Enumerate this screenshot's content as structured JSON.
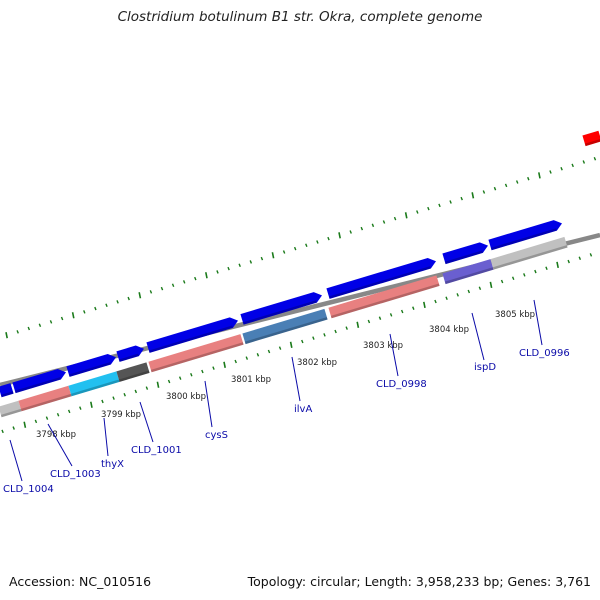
{
  "title": "Clostridium botulinum B1 str. Okra, complete genome",
  "footer": {
    "accession": "Accession: NC_010516",
    "topology": "Topology: circular; Length: 3,958,233 bp; Genes: 3,761"
  },
  "colors": {
    "forward_cds": "#0000e6",
    "reverse_cds": "#e88080",
    "grey_feature": "#c0c0c0",
    "steel_feature": "#4a7fb5",
    "purple_feature": "#6a5fd0",
    "cyan_feature": "#22c0f0",
    "dark_feature": "#555555",
    "red_feature": "#ff0000",
    "tick": "#1a7a1a",
    "backbone": "#888888",
    "label": "#0a0aa8"
  },
  "kbp_labels": [
    "3798 kbp",
    "3799 kbp",
    "3800 kbp",
    "3801 kbp",
    "3802 kbp",
    "3803 kbp",
    "3804 kbp",
    "3805 kbp"
  ],
  "genes": [
    {
      "label": "CLD_1004"
    },
    {
      "label": "CLD_1003"
    },
    {
      "label": "thyX"
    },
    {
      "label": "CLD_1001"
    },
    {
      "label": "cysS"
    },
    {
      "label": "ilvA"
    },
    {
      "label": "CLD_0998"
    },
    {
      "label": "ispD"
    },
    {
      "label": "CLD_0996"
    }
  ]
}
